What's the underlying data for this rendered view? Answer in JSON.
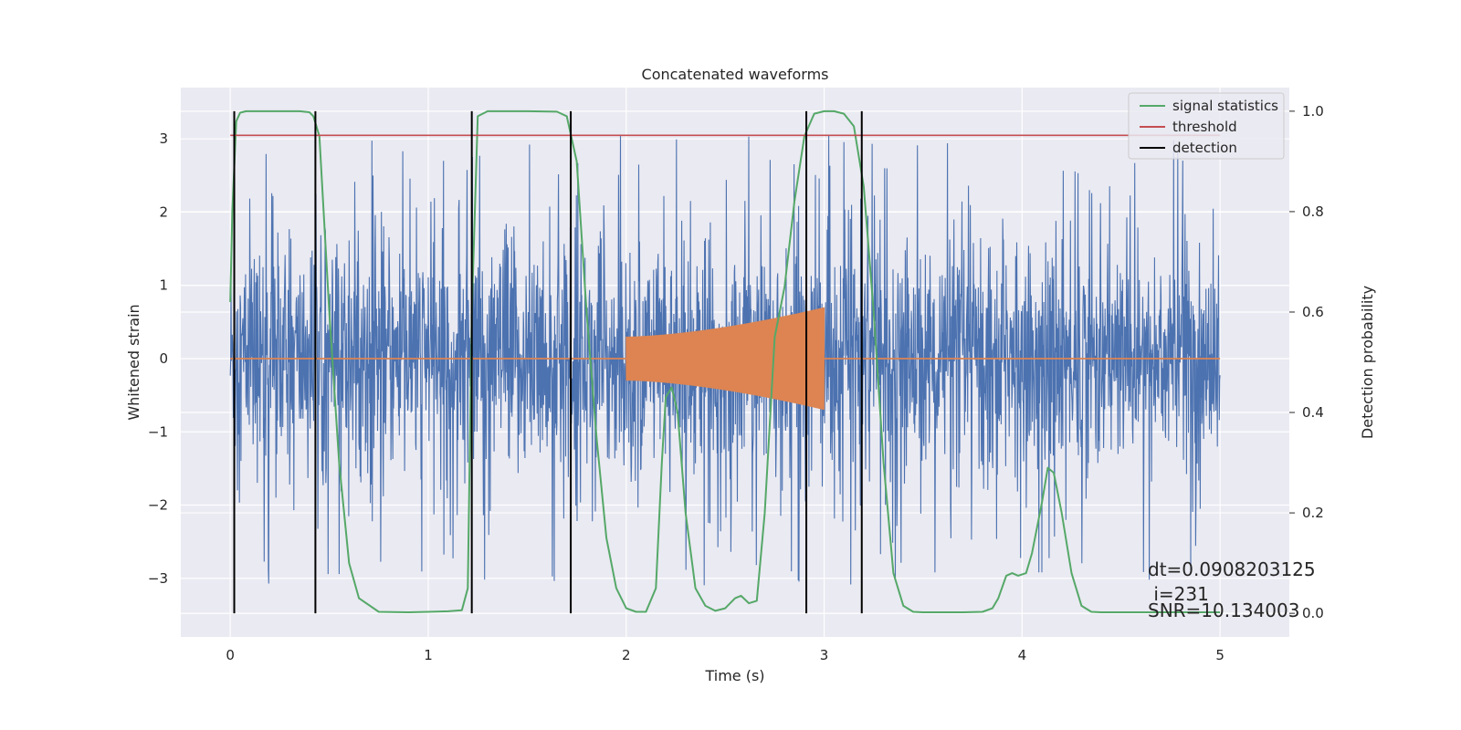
{
  "chart_data": {
    "type": "line",
    "title": "Concatenated waveforms",
    "xlabel": "Time (s)",
    "ylabel": "Whitened strain",
    "y2label": "Detection probability",
    "xlim": [
      -0.25,
      5.35
    ],
    "ylim": [
      -3.8,
      3.7
    ],
    "y2lim": [
      -0.047,
      1.047
    ],
    "xticks": [
      0,
      1,
      2,
      3,
      4,
      5
    ],
    "yticks": [
      -3,
      -2,
      -1,
      0,
      1,
      2,
      3
    ],
    "y2ticks": [
      0.0,
      0.2,
      0.4,
      0.6,
      0.8,
      1.0
    ],
    "xtick_labels": [
      "0",
      "1",
      "2",
      "3",
      "4",
      "5"
    ],
    "ytick_labels": [
      "−3",
      "−2",
      "−1",
      "0",
      "1",
      "2",
      "3"
    ],
    "y2tick_labels": [
      "0.0",
      "0.2",
      "0.4",
      "0.6",
      "0.8",
      "1.0"
    ],
    "grid": true,
    "legend_position": "top-right",
    "colors": {
      "strain": "#4c72b0",
      "injection": "#dd8452",
      "signal_statistics": "#55a868",
      "threshold": "#c44e52",
      "detection": "#000000",
      "background": "#eaeaf2",
      "grid": "#ffffff"
    },
    "series": [
      {
        "name": "signal statistics",
        "axis": "right",
        "x": [
          0.0,
          0.01,
          0.03,
          0.05,
          0.08,
          0.1,
          0.2,
          0.35,
          0.4,
          0.42,
          0.45,
          0.5,
          0.55,
          0.6,
          0.65,
          0.75,
          0.9,
          1.0,
          1.1,
          1.17,
          1.2,
          1.22,
          1.25,
          1.3,
          1.5,
          1.65,
          1.7,
          1.75,
          1.8,
          1.85,
          1.9,
          1.95,
          2.0,
          2.05,
          2.1,
          2.15,
          2.18,
          2.2,
          2.23,
          2.26,
          2.3,
          2.35,
          2.4,
          2.45,
          2.5,
          2.55,
          2.58,
          2.62,
          2.66,
          2.7,
          2.75,
          2.8,
          2.85,
          2.9,
          2.95,
          3.0,
          3.05,
          3.1,
          3.15,
          3.2,
          3.25,
          3.3,
          3.35,
          3.4,
          3.45,
          3.5,
          3.7,
          3.8,
          3.85,
          3.88,
          3.92,
          3.95,
          3.98,
          4.02,
          4.05,
          4.1,
          4.13,
          4.16,
          4.2,
          4.25,
          4.3,
          4.35,
          4.4,
          4.6,
          4.8,
          5.0
        ],
        "values": [
          0.62,
          0.8,
          0.98,
          0.997,
          1.0,
          1.0,
          1.0,
          1.0,
          0.998,
          0.99,
          0.95,
          0.6,
          0.3,
          0.1,
          0.03,
          0.003,
          0.002,
          0.003,
          0.004,
          0.006,
          0.05,
          0.6,
          0.99,
          1.0,
          1.0,
          0.999,
          0.99,
          0.9,
          0.6,
          0.35,
          0.15,
          0.05,
          0.01,
          0.003,
          0.003,
          0.05,
          0.3,
          0.43,
          0.45,
          0.4,
          0.2,
          0.05,
          0.015,
          0.005,
          0.01,
          0.03,
          0.035,
          0.02,
          0.025,
          0.2,
          0.55,
          0.65,
          0.82,
          0.95,
          0.995,
          1.0,
          1.0,
          0.995,
          0.97,
          0.85,
          0.6,
          0.3,
          0.08,
          0.015,
          0.003,
          0.002,
          0.002,
          0.003,
          0.01,
          0.03,
          0.075,
          0.08,
          0.075,
          0.08,
          0.12,
          0.22,
          0.29,
          0.28,
          0.2,
          0.08,
          0.015,
          0.003,
          0.002,
          0.002,
          0.002,
          0.002
        ]
      },
      {
        "name": "threshold",
        "axis": "right",
        "x": [
          0.0,
          5.0
        ],
        "values": [
          0.952,
          0.952
        ]
      },
      {
        "name": "detection",
        "axis": "vertical-lines",
        "x": [
          0.02,
          0.43,
          1.22,
          1.72,
          2.91,
          3.19
        ],
        "y_range": [
          0.0,
          1.0
        ]
      }
    ],
    "strain": {
      "x_range": [
        0.0,
        5.0
      ],
      "envelope": [
        -3.4,
        3.3
      ]
    },
    "injection": {
      "x_range": [
        2.0,
        3.0
      ],
      "start_amplitude": 0.3,
      "end_amplitude": 0.7
    },
    "annotations": [
      "dt=0.0908203125",
      " i=231",
      "SNR=10.134003"
    ]
  }
}
